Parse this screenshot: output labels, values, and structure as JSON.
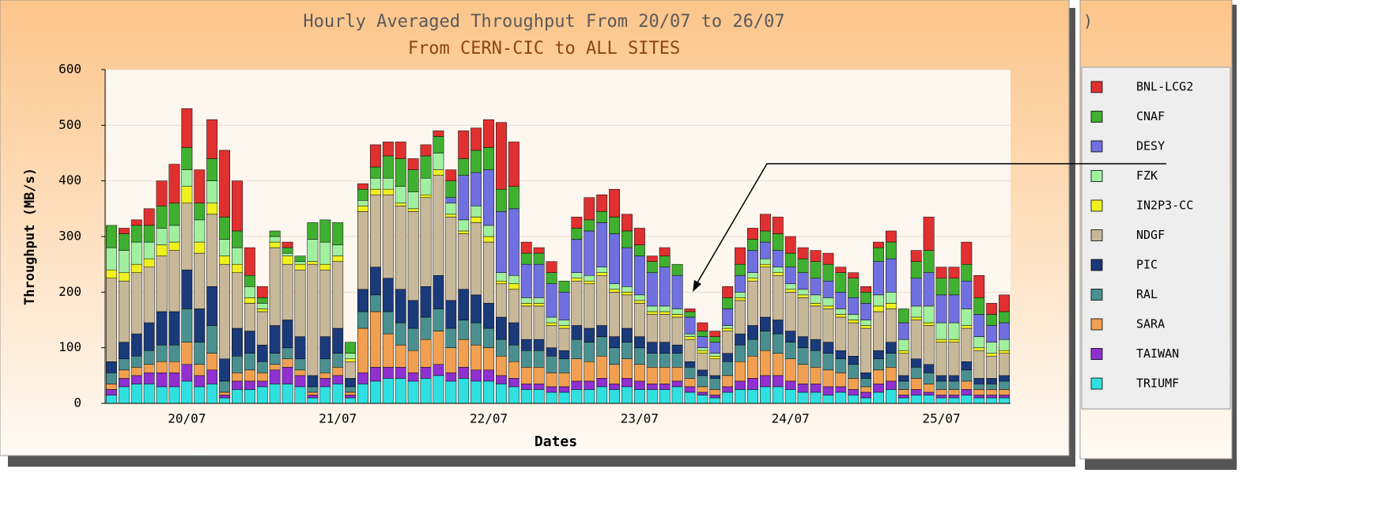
{
  "chart_data": {
    "type": "stacked_bar",
    "title": "Hourly Averaged Throughput From 20/07 to 26/07",
    "subtitle": "From CERN-CIC to ALL SITES",
    "x_label": "Dates",
    "y_label": "Throughput (MB/s)",
    "background_fragment": ")",
    "categories": [
      null,
      null,
      null,
      null,
      null,
      null,
      "20/07",
      null,
      null,
      null,
      null,
      null,
      null,
      null,
      null,
      null,
      null,
      null,
      "21/07",
      null,
      null,
      null,
      null,
      null,
      null,
      null,
      null,
      null,
      null,
      null,
      "22/07",
      null,
      null,
      null,
      null,
      null,
      null,
      null,
      null,
      null,
      null,
      null,
      "23/07",
      null,
      null,
      null,
      null,
      null,
      null,
      null,
      null,
      null,
      null,
      null,
      "24/07",
      null,
      null,
      null,
      null,
      null,
      null,
      null,
      null,
      null,
      null,
      null,
      "25/07",
      null,
      null,
      null,
      null,
      null
    ],
    "ylim": [
      0,
      600
    ],
    "yticks": [
      0,
      100,
      200,
      300,
      400,
      500,
      600
    ],
    "grid": true,
    "legend": "right",
    "series": [
      {
        "name": "BNL-LCG2",
        "color": "#e03030",
        "values": [
          0,
          10,
          10,
          30,
          45,
          70,
          70,
          60,
          70,
          120,
          90,
          50,
          20,
          0,
          10,
          0,
          0,
          0,
          0,
          0,
          10,
          40,
          25,
          30,
          20,
          20,
          10,
          20,
          50,
          40,
          50,
          120,
          80,
          20,
          10,
          20,
          0,
          20,
          40,
          30,
          50,
          30,
          30,
          10,
          15,
          0,
          5,
          15,
          10,
          20,
          30,
          20,
          30,
          30,
          30,
          20,
          20,
          20,
          10,
          10,
          10,
          10,
          20,
          0,
          20,
          60,
          20,
          20,
          40,
          40,
          20,
          30
        ]
      },
      {
        "name": "CNAF",
        "color": "#40b030",
        "values": [
          40,
          30,
          30,
          30,
          40,
          40,
          40,
          30,
          40,
          40,
          30,
          20,
          10,
          10,
          10,
          10,
          30,
          40,
          40,
          20,
          20,
          20,
          40,
          50,
          40,
          40,
          30,
          30,
          30,
          40,
          40,
          40,
          40,
          20,
          20,
          20,
          20,
          20,
          20,
          20,
          30,
          30,
          20,
          20,
          20,
          20,
          10,
          10,
          10,
          20,
          20,
          20,
          20,
          30,
          25,
          25,
          30,
          30,
          35,
          35,
          20,
          25,
          30,
          25,
          30,
          40,
          30,
          30,
          30,
          30,
          20,
          20
        ]
      },
      {
        "name": "DESY",
        "color": "#7070e0",
        "values": [
          0,
          0,
          0,
          0,
          0,
          0,
          0,
          0,
          0,
          0,
          0,
          0,
          0,
          0,
          0,
          0,
          0,
          0,
          0,
          0,
          0,
          0,
          0,
          0,
          0,
          0,
          0,
          10,
          80,
          60,
          100,
          110,
          120,
          60,
          60,
          60,
          50,
          60,
          80,
          80,
          90,
          70,
          70,
          60,
          70,
          60,
          30,
          20,
          20,
          30,
          30,
          40,
          30,
          30,
          30,
          30,
          30,
          30,
          30,
          30,
          30,
          60,
          60,
          30,
          50,
          60,
          50,
          50,
          50,
          40,
          30,
          30
        ]
      },
      {
        "name": "FZK",
        "color": "#a0f0a0",
        "values": [
          40,
          40,
          40,
          30,
          30,
          30,
          30,
          40,
          40,
          30,
          30,
          20,
          10,
          10,
          5,
          5,
          40,
          40,
          20,
          10,
          10,
          20,
          20,
          30,
          30,
          30,
          30,
          20,
          20,
          20,
          20,
          15,
          15,
          10,
          10,
          10,
          10,
          10,
          10,
          10,
          10,
          10,
          10,
          10,
          10,
          10,
          5,
          5,
          5,
          5,
          10,
          10,
          10,
          10,
          10,
          10,
          15,
          15,
          10,
          10,
          10,
          20,
          20,
          20,
          20,
          30,
          30,
          30,
          30,
          20,
          20,
          20
        ]
      },
      {
        "name": "IN2P3-CC",
        "color": "#f0f020",
        "values": [
          15,
          15,
          15,
          15,
          20,
          15,
          30,
          20,
          20,
          15,
          15,
          10,
          5,
          10,
          15,
          10,
          5,
          10,
          10,
          5,
          10,
          10,
          10,
          5,
          5,
          5,
          10,
          5,
          5,
          10,
          10,
          5,
          10,
          5,
          5,
          5,
          5,
          5,
          5,
          5,
          5,
          5,
          5,
          5,
          5,
          5,
          5,
          5,
          5,
          5,
          5,
          5,
          5,
          5,
          5,
          5,
          5,
          5,
          5,
          5,
          5,
          10,
          10,
          5,
          5,
          5,
          5,
          5,
          5,
          5,
          5,
          5
        ]
      },
      {
        "name": "NDGF",
        "color": "#c8b89a",
        "values": [
          150,
          110,
          110,
          100,
          100,
          110,
          120,
          100,
          130,
          170,
          100,
          50,
          60,
          140,
          100,
          120,
          200,
          120,
          120,
          30,
          140,
          130,
          150,
          150,
          160,
          160,
          180,
          150,
          100,
          130,
          110,
          60,
          60,
          60,
          60,
          40,
          40,
          80,
          80,
          90,
          80,
          60,
          60,
          50,
          50,
          50,
          40,
          30,
          30,
          40,
          60,
          80,
          90,
          80,
          70,
          70,
          60,
          60,
          60,
          60,
          80,
          70,
          60,
          40,
          70,
          70,
          60,
          60,
          60,
          50,
          40,
          40
        ]
      },
      {
        "name": "PIC",
        "color": "#1a3a7a",
        "values": [
          20,
          30,
          40,
          50,
          60,
          60,
          70,
          60,
          70,
          40,
          50,
          40,
          30,
          50,
          50,
          40,
          20,
          40,
          45,
          15,
          40,
          50,
          60,
          60,
          50,
          55,
          60,
          50,
          55,
          50,
          45,
          40,
          40,
          20,
          20,
          15,
          15,
          25,
          25,
          20,
          20,
          25,
          20,
          20,
          20,
          15,
          10,
          10,
          5,
          15,
          20,
          25,
          25,
          25,
          20,
          20,
          20,
          20,
          15,
          15,
          10,
          15,
          20,
          10,
          15,
          15,
          10,
          10,
          15,
          10,
          10,
          10
        ]
      },
      {
        "name": "RAL",
        "color": "#4a9090",
        "values": [
          20,
          20,
          20,
          25,
          30,
          30,
          60,
          40,
          50,
          20,
          30,
          30,
          20,
          20,
          20,
          20,
          10,
          25,
          25,
          10,
          30,
          30,
          40,
          40,
          40,
          40,
          40,
          35,
          35,
          40,
          35,
          30,
          30,
          30,
          30,
          30,
          25,
          35,
          35,
          35,
          30,
          30,
          30,
          25,
          25,
          25,
          20,
          20,
          20,
          25,
          30,
          30,
          35,
          35,
          30,
          30,
          30,
          30,
          25,
          25,
          15,
          20,
          25,
          15,
          20,
          20,
          15,
          15,
          20,
          10,
          10,
          15
        ]
      },
      {
        "name": "SARA",
        "color": "#f0a050",
        "values": [
          10,
          15,
          15,
          15,
          20,
          20,
          40,
          20,
          30,
          5,
          15,
          20,
          15,
          10,
          15,
          10,
          5,
          10,
          15,
          5,
          80,
          100,
          60,
          40,
          40,
          50,
          60,
          45,
          50,
          45,
          40,
          35,
          30,
          30,
          30,
          25,
          25,
          40,
          35,
          40,
          35,
          35,
          30,
          30,
          30,
          25,
          15,
          10,
          10,
          20,
          35,
          40,
          45,
          40,
          40,
          35,
          30,
          30,
          25,
          20,
          10,
          25,
          25,
          10,
          20,
          15,
          10,
          10,
          15,
          10,
          10,
          10
        ]
      },
      {
        "name": "TAIWAN",
        "color": "#9030d0",
        "values": [
          10,
          15,
          15,
          20,
          25,
          25,
          30,
          20,
          25,
          5,
          15,
          15,
          10,
          25,
          30,
          20,
          5,
          15,
          15,
          5,
          20,
          25,
          20,
          20,
          15,
          20,
          20,
          15,
          20,
          20,
          20,
          15,
          15,
          10,
          10,
          10,
          10,
          15,
          15,
          15,
          10,
          15,
          15,
          10,
          10,
          10,
          10,
          5,
          5,
          10,
          15,
          20,
          20,
          20,
          15,
          15,
          15,
          15,
          10,
          10,
          10,
          15,
          15,
          5,
          10,
          5,
          5,
          5,
          10,
          5,
          5,
          5
        ]
      },
      {
        "name": "TRIUMF",
        "color": "#30e0e0",
        "values": [
          15,
          30,
          35,
          35,
          30,
          30,
          40,
          30,
          35,
          10,
          25,
          25,
          30,
          35,
          35,
          30,
          10,
          30,
          35,
          10,
          35,
          40,
          45,
          45,
          40,
          45,
          50,
          40,
          45,
          40,
          40,
          35,
          30,
          25,
          25,
          20,
          20,
          25,
          25,
          30,
          25,
          30,
          25,
          25,
          25,
          30,
          20,
          15,
          10,
          20,
          25,
          25,
          30,
          30,
          25,
          20,
          20,
          15,
          20,
          15,
          10,
          20,
          25,
          10,
          15,
          15,
          10,
          10,
          15,
          10,
          10,
          10
        ]
      }
    ]
  }
}
